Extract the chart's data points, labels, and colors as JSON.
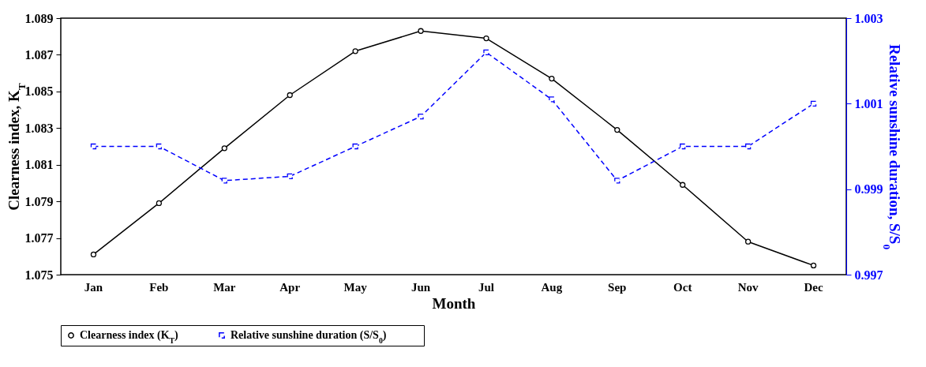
{
  "chart_data": {
    "type": "line",
    "xlabel": "Month",
    "ylabel": "Clearness  index,  K$_{T}$",
    "y2label": "Relative  sunshine  duration,  S/S$_{0}$",
    "categories": [
      "Jan",
      "Feb",
      "Mar",
      "Apr",
      "May",
      "Jun",
      "Jul",
      "Aug",
      "Sep",
      "Oct",
      "Nov",
      "Dec"
    ],
    "ylim": [
      1.075,
      1.089
    ],
    "yticks": [
      1.075,
      1.077,
      1.079,
      1.081,
      1.083,
      1.085,
      1.087,
      1.089
    ],
    "y2lim": [
      0.997,
      1.003
    ],
    "y2ticks": [
      0.997,
      0.999,
      1.001,
      1.003
    ],
    "legend": "bottom",
    "grid": false,
    "series": [
      {
        "name": "Clearness  index  (K$_{T}$)",
        "color": "#000000",
        "marker": "circle",
        "line_style": "solid",
        "values": [
          1.0761,
          1.0789,
          1.0819,
          1.0848,
          1.0872,
          1.0883,
          1.0879,
          1.0857,
          1.0829,
          1.0799,
          1.0768,
          1.0755
        ]
      },
      {
        "name": "Relative  sunshine  duration  (S/S$_{0}$)",
        "color": "#0000ff",
        "marker": "square",
        "line_style": "dashed",
        "axis": "y2",
        "values": [
          1.0,
          1.0,
          0.9992,
          0.9993,
          1.0,
          1.0007,
          1.0022,
          1.0011,
          0.9992,
          1.0,
          1.0,
          1.001
        ]
      }
    ]
  }
}
